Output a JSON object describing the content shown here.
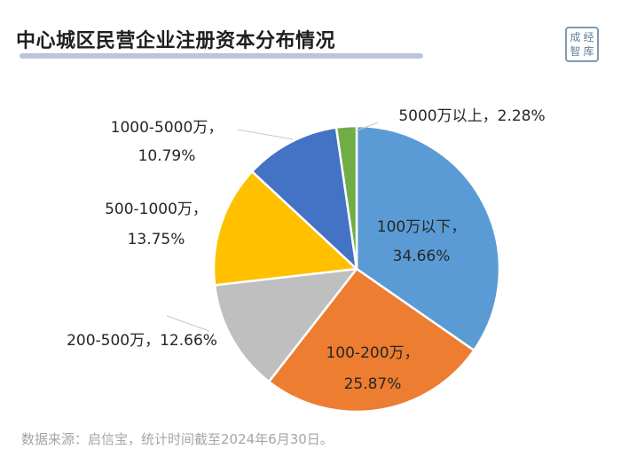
{
  "title": "中心城区民营企业注册资本分布情况",
  "logo": {
    "chars": [
      "成",
      "经",
      "智",
      "库"
    ]
  },
  "source": "数据来源：启信宝，统计时间截至2024年6月30日。",
  "chart_data": {
    "type": "pie",
    "start_angle_deg": 0,
    "direction": "clockwise",
    "slices": [
      {
        "label": "100万以下",
        "value": 34.66,
        "label_text": "100万以下，",
        "value_text": "34.66%",
        "color": "#5b9bd5"
      },
      {
        "label": "100-200万",
        "value": 25.87,
        "label_text": "100-200万，",
        "value_text": "25.87%",
        "color": "#ed7d31"
      },
      {
        "label": "200-500万",
        "value": 12.66,
        "label_text": "200-500万，",
        "value_text": "12.66%",
        "color": "#bfbfbf"
      },
      {
        "label": "500-1000万",
        "value": 13.75,
        "label_text": "500-1000万，",
        "value_text": "13.75%",
        "color": "#ffc000"
      },
      {
        "label": "1000-5000万",
        "value": 10.79,
        "label_text": "1000-5000万，",
        "value_text": "10.79%",
        "color": "#4472c4"
      },
      {
        "label": "5000万以上",
        "value": 2.28,
        "label_text": "5000万以上，",
        "value_text": "2.28%",
        "color": "#70ad47"
      }
    ]
  }
}
